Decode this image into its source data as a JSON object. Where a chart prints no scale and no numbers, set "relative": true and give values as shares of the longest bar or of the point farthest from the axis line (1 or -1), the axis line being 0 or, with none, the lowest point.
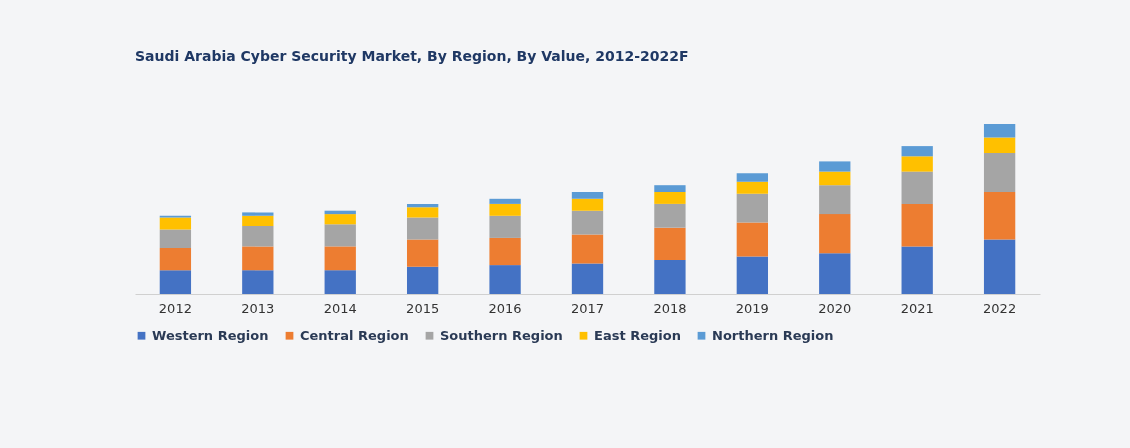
{
  "chart_data": {
    "type": "bar",
    "title": "Saudi Arabia Cyber Security Market, By Region, By Value, 2012-2022F",
    "categories": [
      "2012",
      "2013",
      "2014",
      "2015",
      "2016",
      "2017",
      "2018",
      "2019",
      "2020",
      "2021",
      "2022"
    ],
    "stacked": true,
    "relative": true,
    "legend": "bottom left",
    "series": [
      {
        "name": "Western Region",
        "color": "#4472c4",
        "values": [
          0.14,
          0.14,
          0.14,
          0.16,
          0.17,
          0.18,
          0.2,
          0.22,
          0.24,
          0.28,
          0.32
        ]
      },
      {
        "name": "Central Region",
        "color": "#ed7d31",
        "values": [
          0.13,
          0.14,
          0.14,
          0.16,
          0.16,
          0.17,
          0.19,
          0.2,
          0.23,
          0.25,
          0.28
        ]
      },
      {
        "name": "Southern Region",
        "color": "#a5a5a5",
        "values": [
          0.11,
          0.12,
          0.13,
          0.13,
          0.13,
          0.14,
          0.14,
          0.17,
          0.17,
          0.19,
          0.23
        ]
      },
      {
        "name": "East Region",
        "color": "#ffc000",
        "values": [
          0.07,
          0.06,
          0.06,
          0.06,
          0.07,
          0.07,
          0.07,
          0.07,
          0.08,
          0.09,
          0.09
        ]
      },
      {
        "name": "Northern Region",
        "color": "#5b9bd5",
        "values": [
          0.01,
          0.02,
          0.02,
          0.02,
          0.03,
          0.04,
          0.04,
          0.05,
          0.06,
          0.06,
          0.08
        ]
      }
    ]
  }
}
